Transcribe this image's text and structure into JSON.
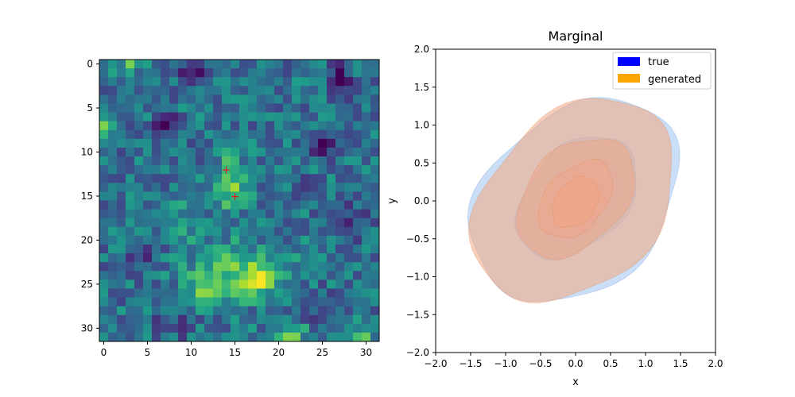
{
  "chart_data": [
    {
      "type": "heatmap",
      "title": "",
      "xlabel": "",
      "ylabel": "",
      "rows": 32,
      "cols": 32,
      "x_ticks": [
        "0",
        "5",
        "10",
        "15",
        "20",
        "25",
        "30"
      ],
      "y_ticks": [
        "0",
        "5",
        "10",
        "15",
        "20",
        "25",
        "30"
      ],
      "colormap": "viridis",
      "markers": [
        {
          "x": 14,
          "y": 12,
          "symbol": "+",
          "color": "#e31a1c"
        },
        {
          "x": 15,
          "y": 15,
          "symbol": "+",
          "color": "#e31a1c"
        }
      ],
      "hotspots": [
        {
          "x": 14.5,
          "y": 13.5,
          "sx": 1.3,
          "sy": 2.2,
          "v": 0.4
        },
        {
          "x": 15.0,
          "y": 23.5,
          "sx": 4.0,
          "sy": 2.2,
          "v": 0.3
        },
        {
          "x": 12.0,
          "y": 25.5,
          "sx": 1.2,
          "sy": 1.1,
          "v": 0.35
        },
        {
          "x": 17.5,
          "y": 25.0,
          "sx": 1.6,
          "sy": 1.2,
          "v": 0.3
        },
        {
          "x": 21.0,
          "y": 31.0,
          "sx": 1.5,
          "sy": 1.0,
          "v": 0.4
        },
        {
          "x": 29.0,
          "y": 31.0,
          "sx": 1.4,
          "sy": 1.0,
          "v": 0.3
        },
        {
          "x": 3.0,
          "y": 0.0,
          "sx": 1.5,
          "sy": 0.8,
          "v": 0.25
        },
        {
          "x": 0.0,
          "y": 7.0,
          "sx": 0.8,
          "sy": 1.0,
          "v": 0.35
        },
        {
          "x": 9.0,
          "y": 18.0,
          "sx": 1.5,
          "sy": 1.5,
          "v": 0.15
        }
      ],
      "coldspots": [
        {
          "x": 7.0,
          "y": 7.0,
          "sx": 1.0,
          "sy": 1.0,
          "v": 0.3
        },
        {
          "x": 27.0,
          "y": 2.0,
          "sx": 1.0,
          "sy": 2.0,
          "v": 0.35
        },
        {
          "x": 25.5,
          "y": 9.5,
          "sx": 1.5,
          "sy": 1.0,
          "v": 0.3
        },
        {
          "x": 10.0,
          "y": 1.0,
          "sx": 2.0,
          "sy": 1.0,
          "v": 0.2
        },
        {
          "x": 23.0,
          "y": 14.5,
          "sx": 1.0,
          "sy": 1.0,
          "v": 0.25
        },
        {
          "x": 4.5,
          "y": 22.0,
          "sx": 1.2,
          "sy": 1.2,
          "v": 0.25
        },
        {
          "x": 28.0,
          "y": 18.0,
          "sx": 1.5,
          "sy": 1.5,
          "v": 0.25
        },
        {
          "x": 24.5,
          "y": 27.5,
          "sx": 1.2,
          "sy": 1.2,
          "v": 0.2
        },
        {
          "x": 8.0,
          "y": 29.5,
          "sx": 1.5,
          "sy": 1.0,
          "v": 0.2
        }
      ]
    },
    {
      "type": "area",
      "subtype": "kde-contour",
      "title": "Marginal",
      "xlabel": "x",
      "ylabel": "y",
      "xlim": [
        -2.0,
        2.0
      ],
      "ylim": [
        -2.0,
        2.0
      ],
      "x_ticks": [
        "−2.0",
        "−1.5",
        "−1.0",
        "−0.5",
        "0.0",
        "0.5",
        "1.0",
        "1.5",
        "2.0"
      ],
      "y_ticks": [
        "−2.0",
        "−1.5",
        "−1.0",
        "−0.5",
        "0.0",
        "0.5",
        "1.0",
        "1.5",
        "2.0"
      ],
      "legend_position": "top-right",
      "series": [
        {
          "name": "true",
          "color": "#0000ff",
          "fill": "#9fc5f0",
          "levels": [
            {
              "cx": 0.0,
              "cy": 0.0,
              "rx": 1.62,
              "ry": 1.18,
              "angle": 35,
              "alpha": 0.55
            },
            {
              "cx": 0.02,
              "cy": 0.05,
              "rx": 0.98,
              "ry": 0.66,
              "angle": 40,
              "alpha": 0.45
            },
            {
              "cx": 0.05,
              "cy": 0.0,
              "rx": 0.65,
              "ry": 0.42,
              "angle": 42,
              "alpha": 0.45
            },
            {
              "cx": 0.0,
              "cy": 0.0,
              "rx": 0.45,
              "ry": 0.28,
              "angle": 45,
              "alpha": 0.45
            }
          ]
        },
        {
          "name": "generated",
          "color": "#ffa500",
          "fill": "#f4a582",
          "levels": [
            {
              "cx": -0.02,
              "cy": 0.0,
              "rx": 1.6,
              "ry": 1.15,
              "angle": 38,
              "alpha": 0.55
            },
            {
              "cx": 0.0,
              "cy": 0.05,
              "rx": 0.95,
              "ry": 0.65,
              "angle": 40,
              "alpha": 0.45
            },
            {
              "cx": 0.0,
              "cy": 0.02,
              "rx": 0.62,
              "ry": 0.4,
              "angle": 42,
              "alpha": 0.45
            },
            {
              "cx": 0.0,
              "cy": -0.02,
              "rx": 0.38,
              "ry": 0.27,
              "angle": 45,
              "alpha": 0.45
            }
          ]
        }
      ]
    }
  ]
}
